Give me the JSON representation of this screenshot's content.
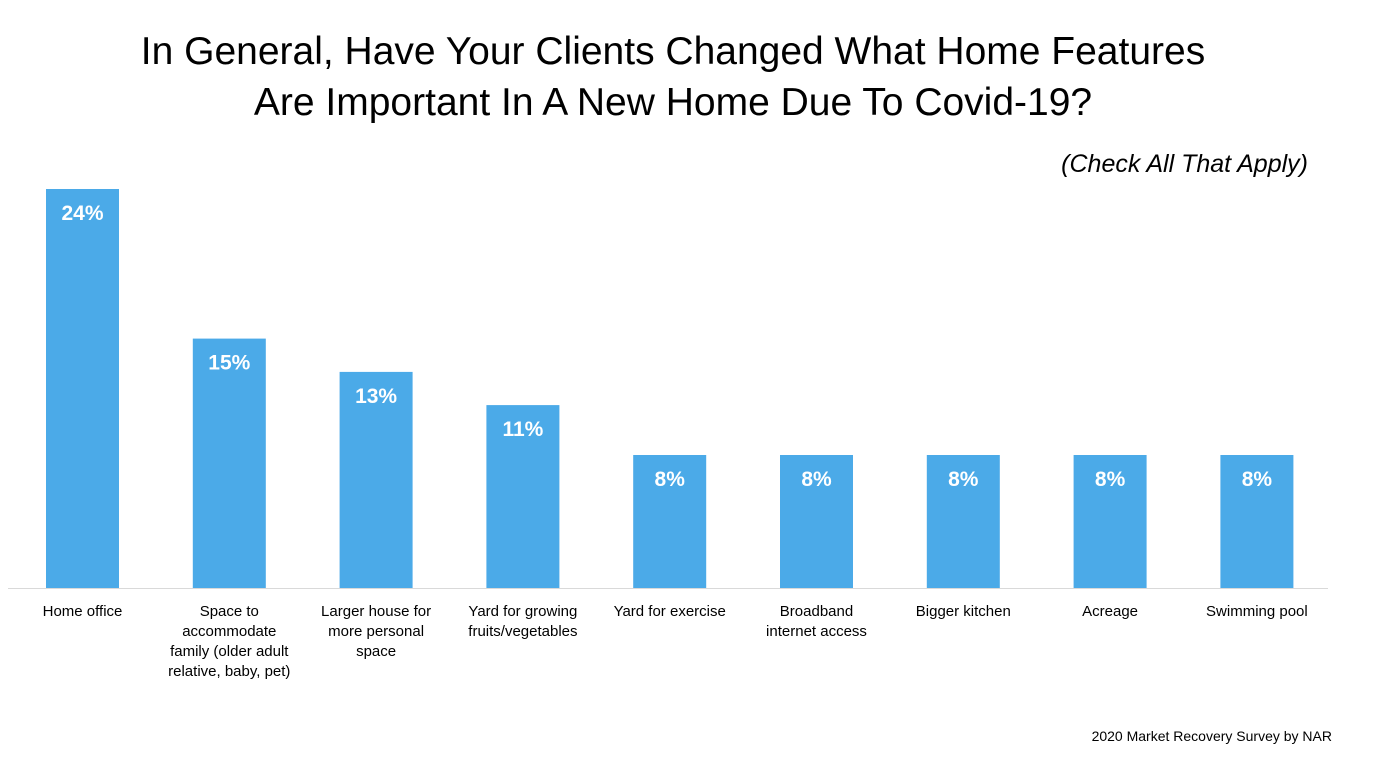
{
  "chart_data": {
    "type": "bar",
    "title_lines": [
      "In General, Have Your Clients Changed What Home Features",
      "Are Important In A New Home Due To Covid-19?"
    ],
    "subtitle": "(Check All That Apply)",
    "source": "2020 Market Recovery Survey by NAR",
    "categories": [
      [
        "Home office"
      ],
      [
        "Space to",
        "accommodate",
        "family (older adult",
        "relative, baby, pet)"
      ],
      [
        "Larger house for",
        "more personal",
        "space"
      ],
      [
        "Yard for growing",
        "fruits/vegetables"
      ],
      [
        "Yard for exercise"
      ],
      [
        "Broadband",
        "internet access"
      ],
      [
        "Bigger kitchen"
      ],
      [
        "Acreage"
      ],
      [
        "Swimming pool"
      ]
    ],
    "values": [
      24,
      15,
      13,
      11,
      8,
      8,
      8,
      8,
      8
    ],
    "value_labels": [
      "24%",
      "15%",
      "13%",
      "11%",
      "8%",
      "8%",
      "8%",
      "8%",
      "8%"
    ],
    "ylim": [
      0,
      24
    ],
    "grid": false,
    "bar_color": "#4BAAE8",
    "axis_color": "#d9d9d9"
  }
}
